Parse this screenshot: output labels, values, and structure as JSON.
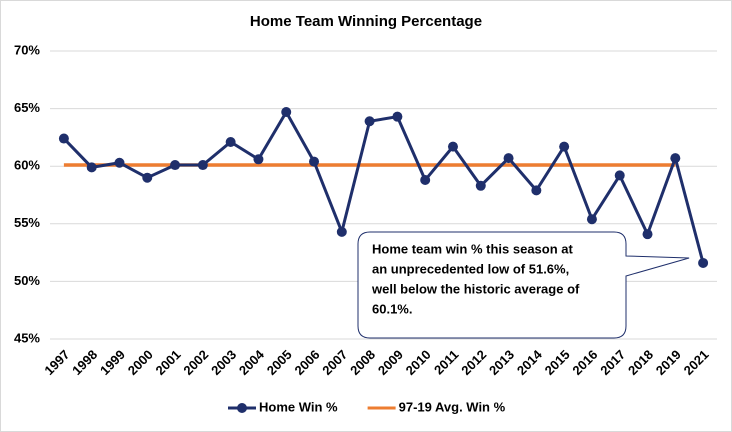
{
  "chart_data": {
    "type": "line",
    "title": "Home Team Winning Percentage",
    "categories": [
      "1997",
      "1998",
      "1999",
      "2000",
      "2001",
      "2002",
      "2003",
      "2004",
      "2005",
      "2006",
      "2007",
      "2008",
      "2009",
      "2010",
      "2011",
      "2012",
      "2013",
      "2014",
      "2015",
      "2016",
      "2017",
      "2018",
      "2019",
      "2021"
    ],
    "series": [
      {
        "name": "Home Win %",
        "color": "#1f2f6b",
        "values": [
          62.4,
          59.9,
          60.3,
          59.0,
          60.1,
          60.1,
          62.1,
          60.6,
          64.7,
          60.4,
          54.3,
          63.9,
          64.3,
          58.8,
          61.7,
          58.3,
          60.7,
          57.9,
          61.7,
          55.4,
          59.2,
          54.1,
          60.7,
          51.6
        ]
      },
      {
        "name": "97-19 Avg. Win %",
        "color": "#ed7d31",
        "values": [
          60.1,
          60.1,
          60.1,
          60.1,
          60.1,
          60.1,
          60.1,
          60.1,
          60.1,
          60.1,
          60.1,
          60.1,
          60.1,
          60.1,
          60.1,
          60.1,
          60.1,
          60.1,
          60.1,
          60.1,
          60.1,
          60.1,
          60.1,
          null
        ]
      }
    ],
    "ylim": [
      45,
      70
    ],
    "yticks": [
      {
        "value": 45,
        "label": "45%"
      },
      {
        "value": 50,
        "label": "50%"
      },
      {
        "value": 55,
        "label": "55%"
      },
      {
        "value": 60,
        "label": "60%"
      },
      {
        "value": 65,
        "label": "65%"
      },
      {
        "value": 70,
        "label": "70%"
      }
    ],
    "grid": true,
    "legend": "bottom",
    "annotation": [
      "Home team win % this season at",
      "an unprecedented low of 51.6%,",
      "well below the historic average of",
      "60.1%."
    ]
  }
}
